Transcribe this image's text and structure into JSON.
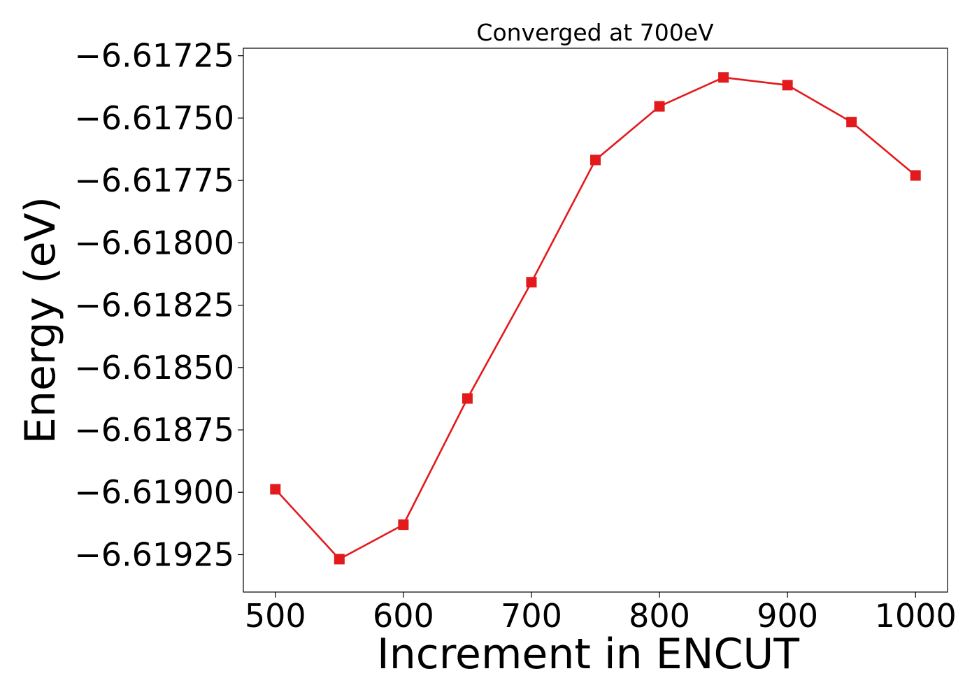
{
  "chart_data": {
    "type": "line",
    "title": "Converged at 700eV",
    "xlabel": "Increment in ENCUT",
    "ylabel": "Energy (eV)",
    "xlim": [
      475,
      1025
    ],
    "ylim": [
      -6.6194,
      -6.61722
    ],
    "xticks": [
      500,
      600,
      700,
      800,
      900,
      1000
    ],
    "xtick_labels": [
      "500",
      "600",
      "700",
      "800",
      "900",
      "1000"
    ],
    "yticks": [
      -6.61725,
      -6.6175,
      -6.61775,
      -6.618,
      -6.61825,
      -6.6185,
      -6.61875,
      -6.619,
      -6.61925
    ],
    "ytick_labels": [
      "−6.61725",
      "−6.61750",
      "−6.61775",
      "−6.61800",
      "−6.61825",
      "−6.61850",
      "−6.61875",
      "−6.61900",
      "−6.61925"
    ],
    "grid": false,
    "legend": "none",
    "series": [
      {
        "color": "#e31a1c",
        "marker": "square",
        "x": [
          500,
          550,
          600,
          650,
          700,
          750,
          800,
          850,
          900,
          950,
          1000
        ],
        "y": [
          -6.618988,
          -6.619268,
          -6.61913,
          -6.618624,
          -6.618158,
          -6.617668,
          -6.617453,
          -6.617337,
          -6.617368,
          -6.617516,
          -6.61773
        ]
      }
    ]
  }
}
